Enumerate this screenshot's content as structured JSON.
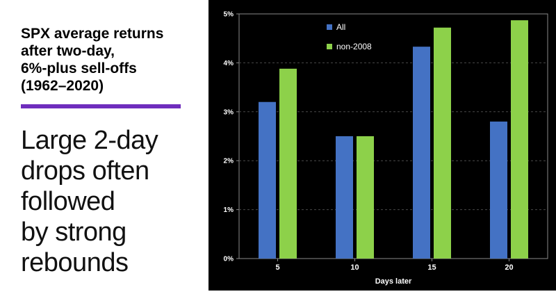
{
  "heading": {
    "lines": [
      "SPX average returns",
      "after two-day,",
      "6%-plus sell-offs",
      "(1962–2020)"
    ]
  },
  "tagline": {
    "lines": [
      "Large 2-day",
      "drops often",
      "followed",
      "by strong",
      "rebounds"
    ]
  },
  "colors": {
    "accent_rule": "#6f2dbd",
    "chart_background": "#000000",
    "plot_background": "#000000",
    "grid": "#4a4a4a",
    "text": "#ffffff",
    "series_all": "#4472c4",
    "series_non2008": "#8dd14a"
  },
  "chart_data": {
    "type": "bar",
    "title": "",
    "xlabel": "Days later",
    "ylabel": "",
    "categories": [
      "5",
      "10",
      "15",
      "20"
    ],
    "series": [
      {
        "name": "All",
        "color": "#4472c4",
        "values": [
          3.2,
          2.5,
          4.33,
          2.8
        ]
      },
      {
        "name": "non-2008",
        "color": "#8dd14a",
        "values": [
          3.88,
          2.5,
          4.72,
          4.87
        ]
      }
    ],
    "ylim": [
      0,
      5
    ],
    "yticks": [
      "0%",
      "1%",
      "2%",
      "3%",
      "4%",
      "5%"
    ],
    "grid": true,
    "legend_position": "top-left"
  }
}
